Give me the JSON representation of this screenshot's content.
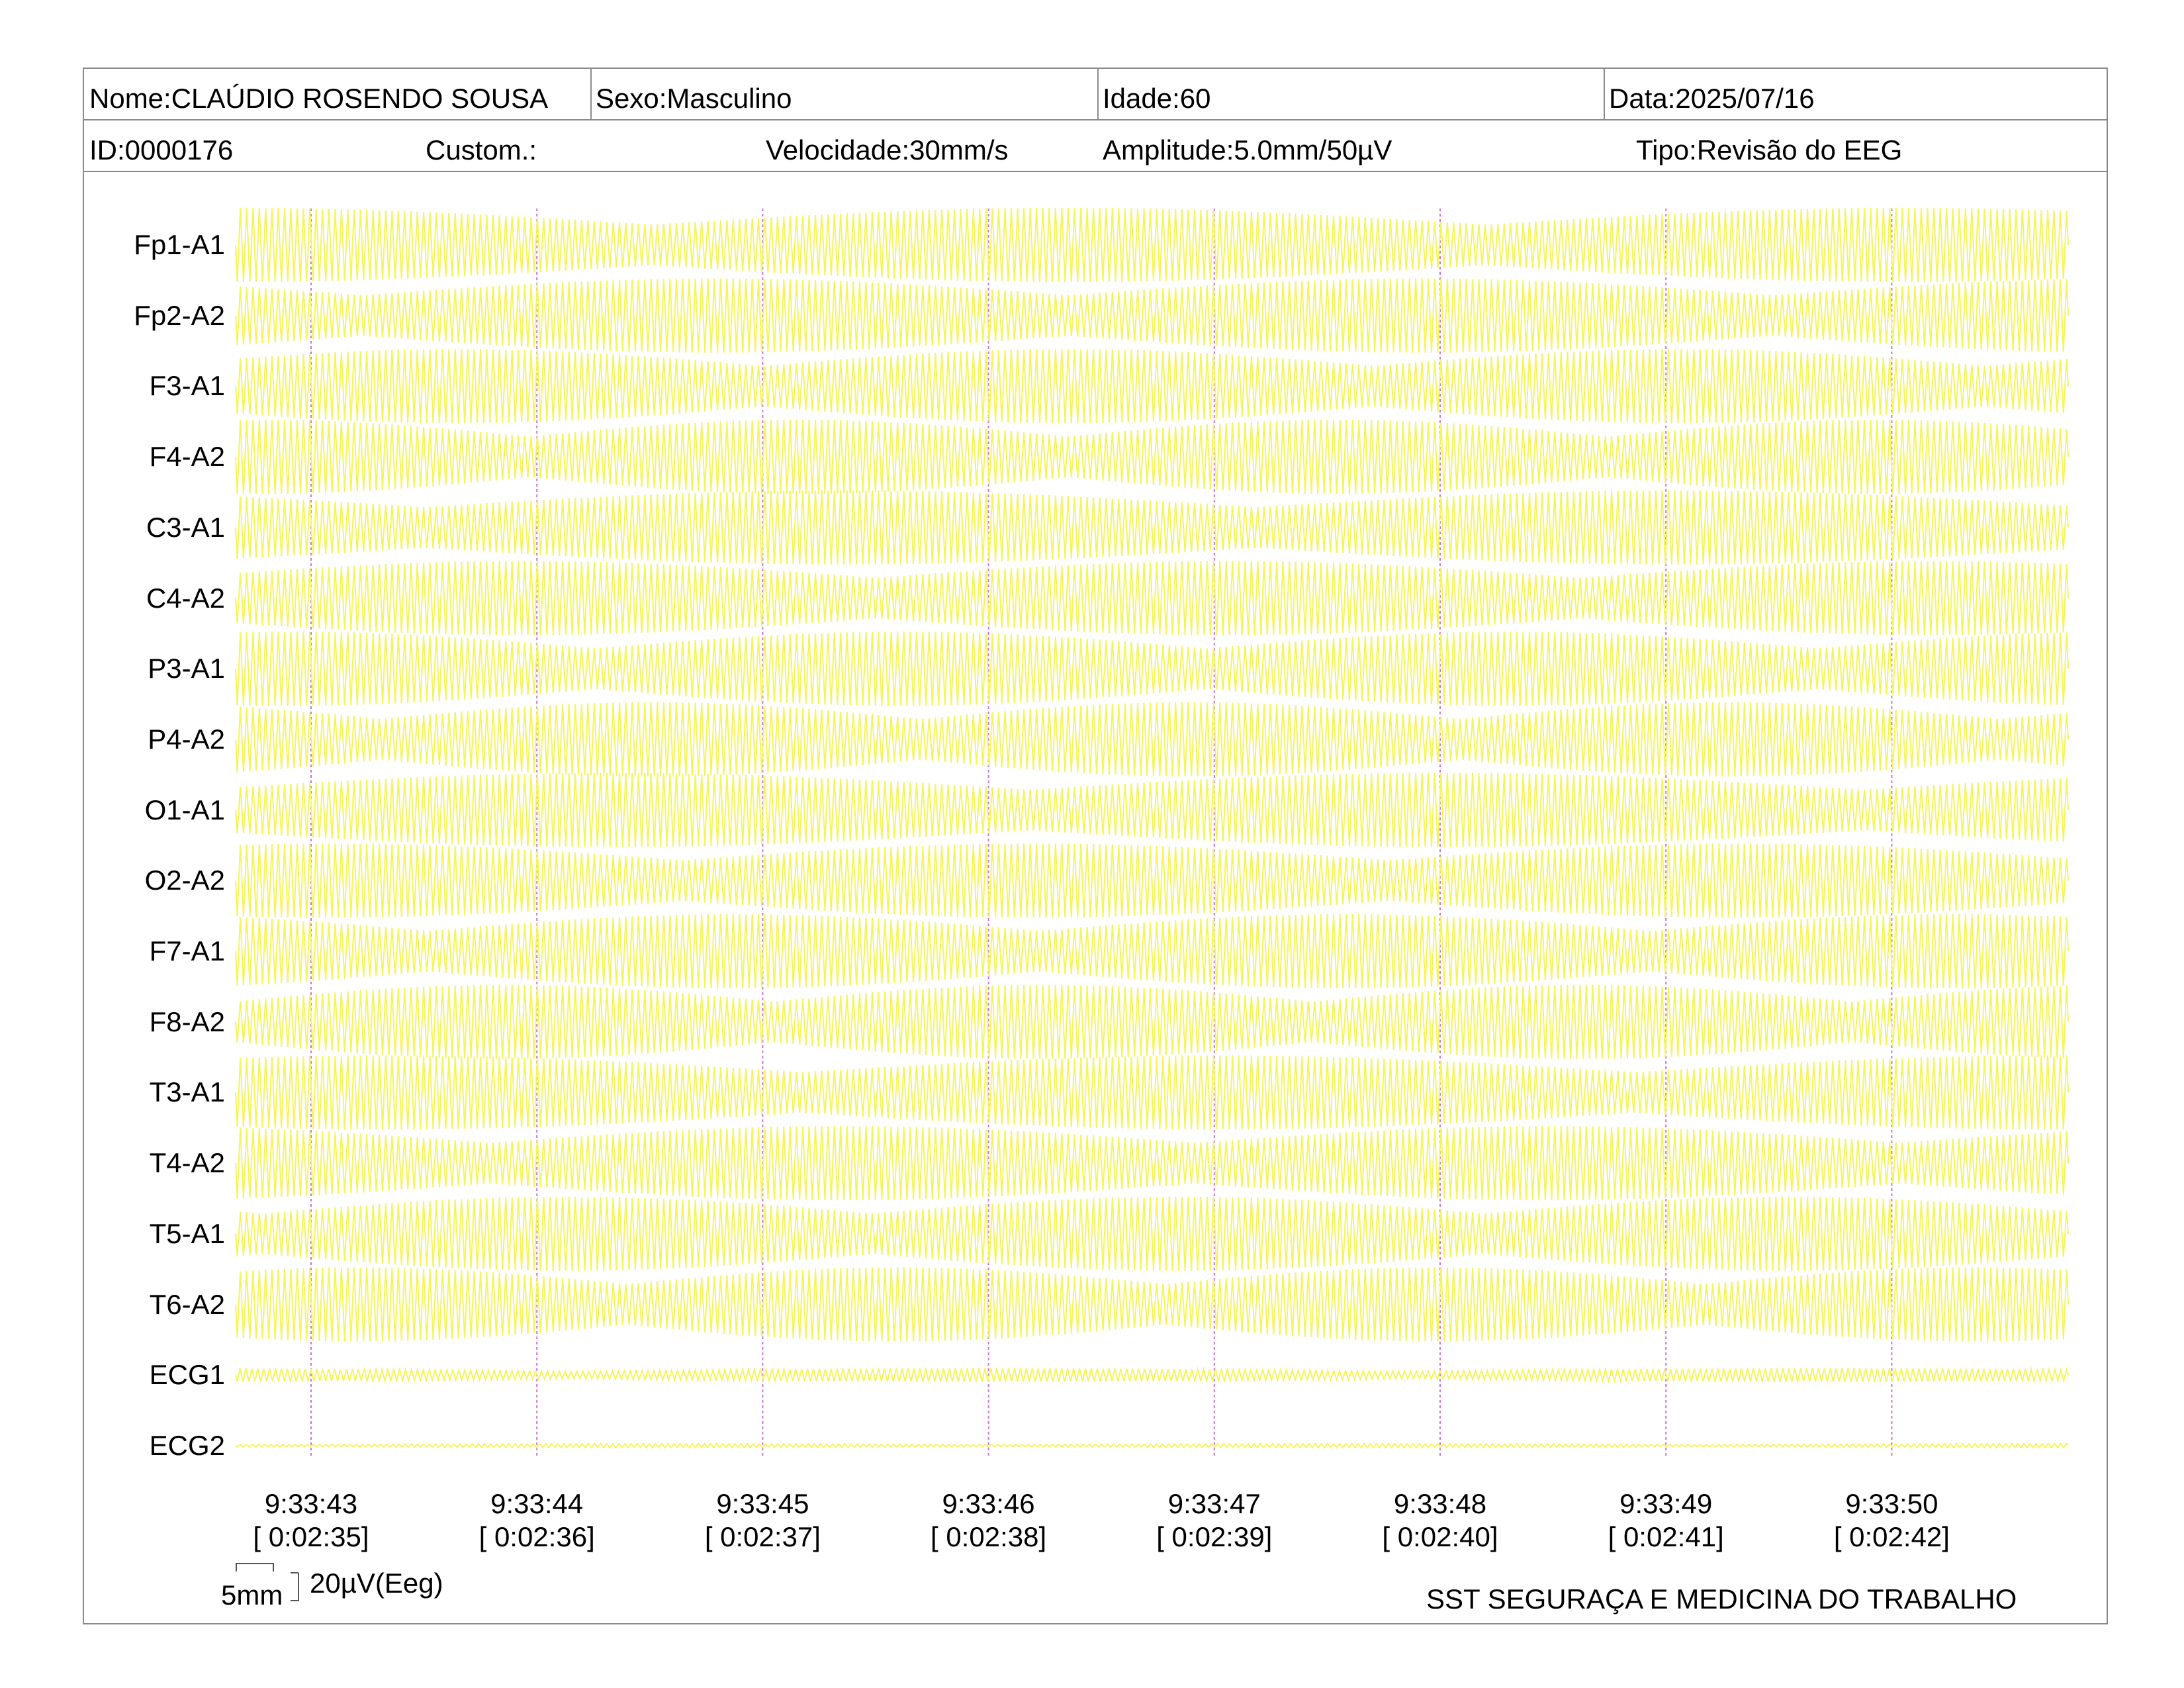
{
  "header": {
    "nome": "Nome:CLAÚDIO ROSENDO SOUSA",
    "sexo": "Sexo:Masculino",
    "idade": "Idade:60",
    "data": "Data:2025/07/16",
    "id": "ID:0000176",
    "custom": "Custom.:",
    "velocidade": "Velocidade:30mm/s",
    "amplitude": "Amplitude:5.0mm/50µV",
    "tipo": "Tipo:Revisão do EEG"
  },
  "channels": [
    "Fp1-A1",
    "Fp2-A2",
    "F3-A1",
    "F4-A2",
    "C3-A1",
    "C4-A2",
    "P3-A1",
    "P4-A2",
    "O1-A1",
    "O2-A2",
    "F7-A1",
    "F8-A2",
    "T3-A1",
    "T4-A2",
    "T5-A1",
    "T6-A2",
    "ECG1",
    "ECG2"
  ],
  "time_marks": [
    {
      "clock": "9:33:43",
      "elapsed": "[ 0:02:35]"
    },
    {
      "clock": "9:33:44",
      "elapsed": "[ 0:02:36]"
    },
    {
      "clock": "9:33:45",
      "elapsed": "[ 0:02:37]"
    },
    {
      "clock": "9:33:46",
      "elapsed": "[ 0:02:38]"
    },
    {
      "clock": "9:33:47",
      "elapsed": "[ 0:02:39]"
    },
    {
      "clock": "9:33:48",
      "elapsed": "[ 0:02:40]"
    },
    {
      "clock": "9:33:49",
      "elapsed": "[ 0:02:41]"
    },
    {
      "clock": "9:33:50",
      "elapsed": "[ 0:02:42]"
    }
  ],
  "scale": {
    "time": "5mm",
    "amplitude": "20µV(Eeg)"
  },
  "footer": {
    "company": "SST SEGURAÇA E MEDICINA DO TRABALHO"
  },
  "colors": {
    "trace": "#f5f55a",
    "time_marker": "#d070d8",
    "border": "#8a8a8a"
  }
}
